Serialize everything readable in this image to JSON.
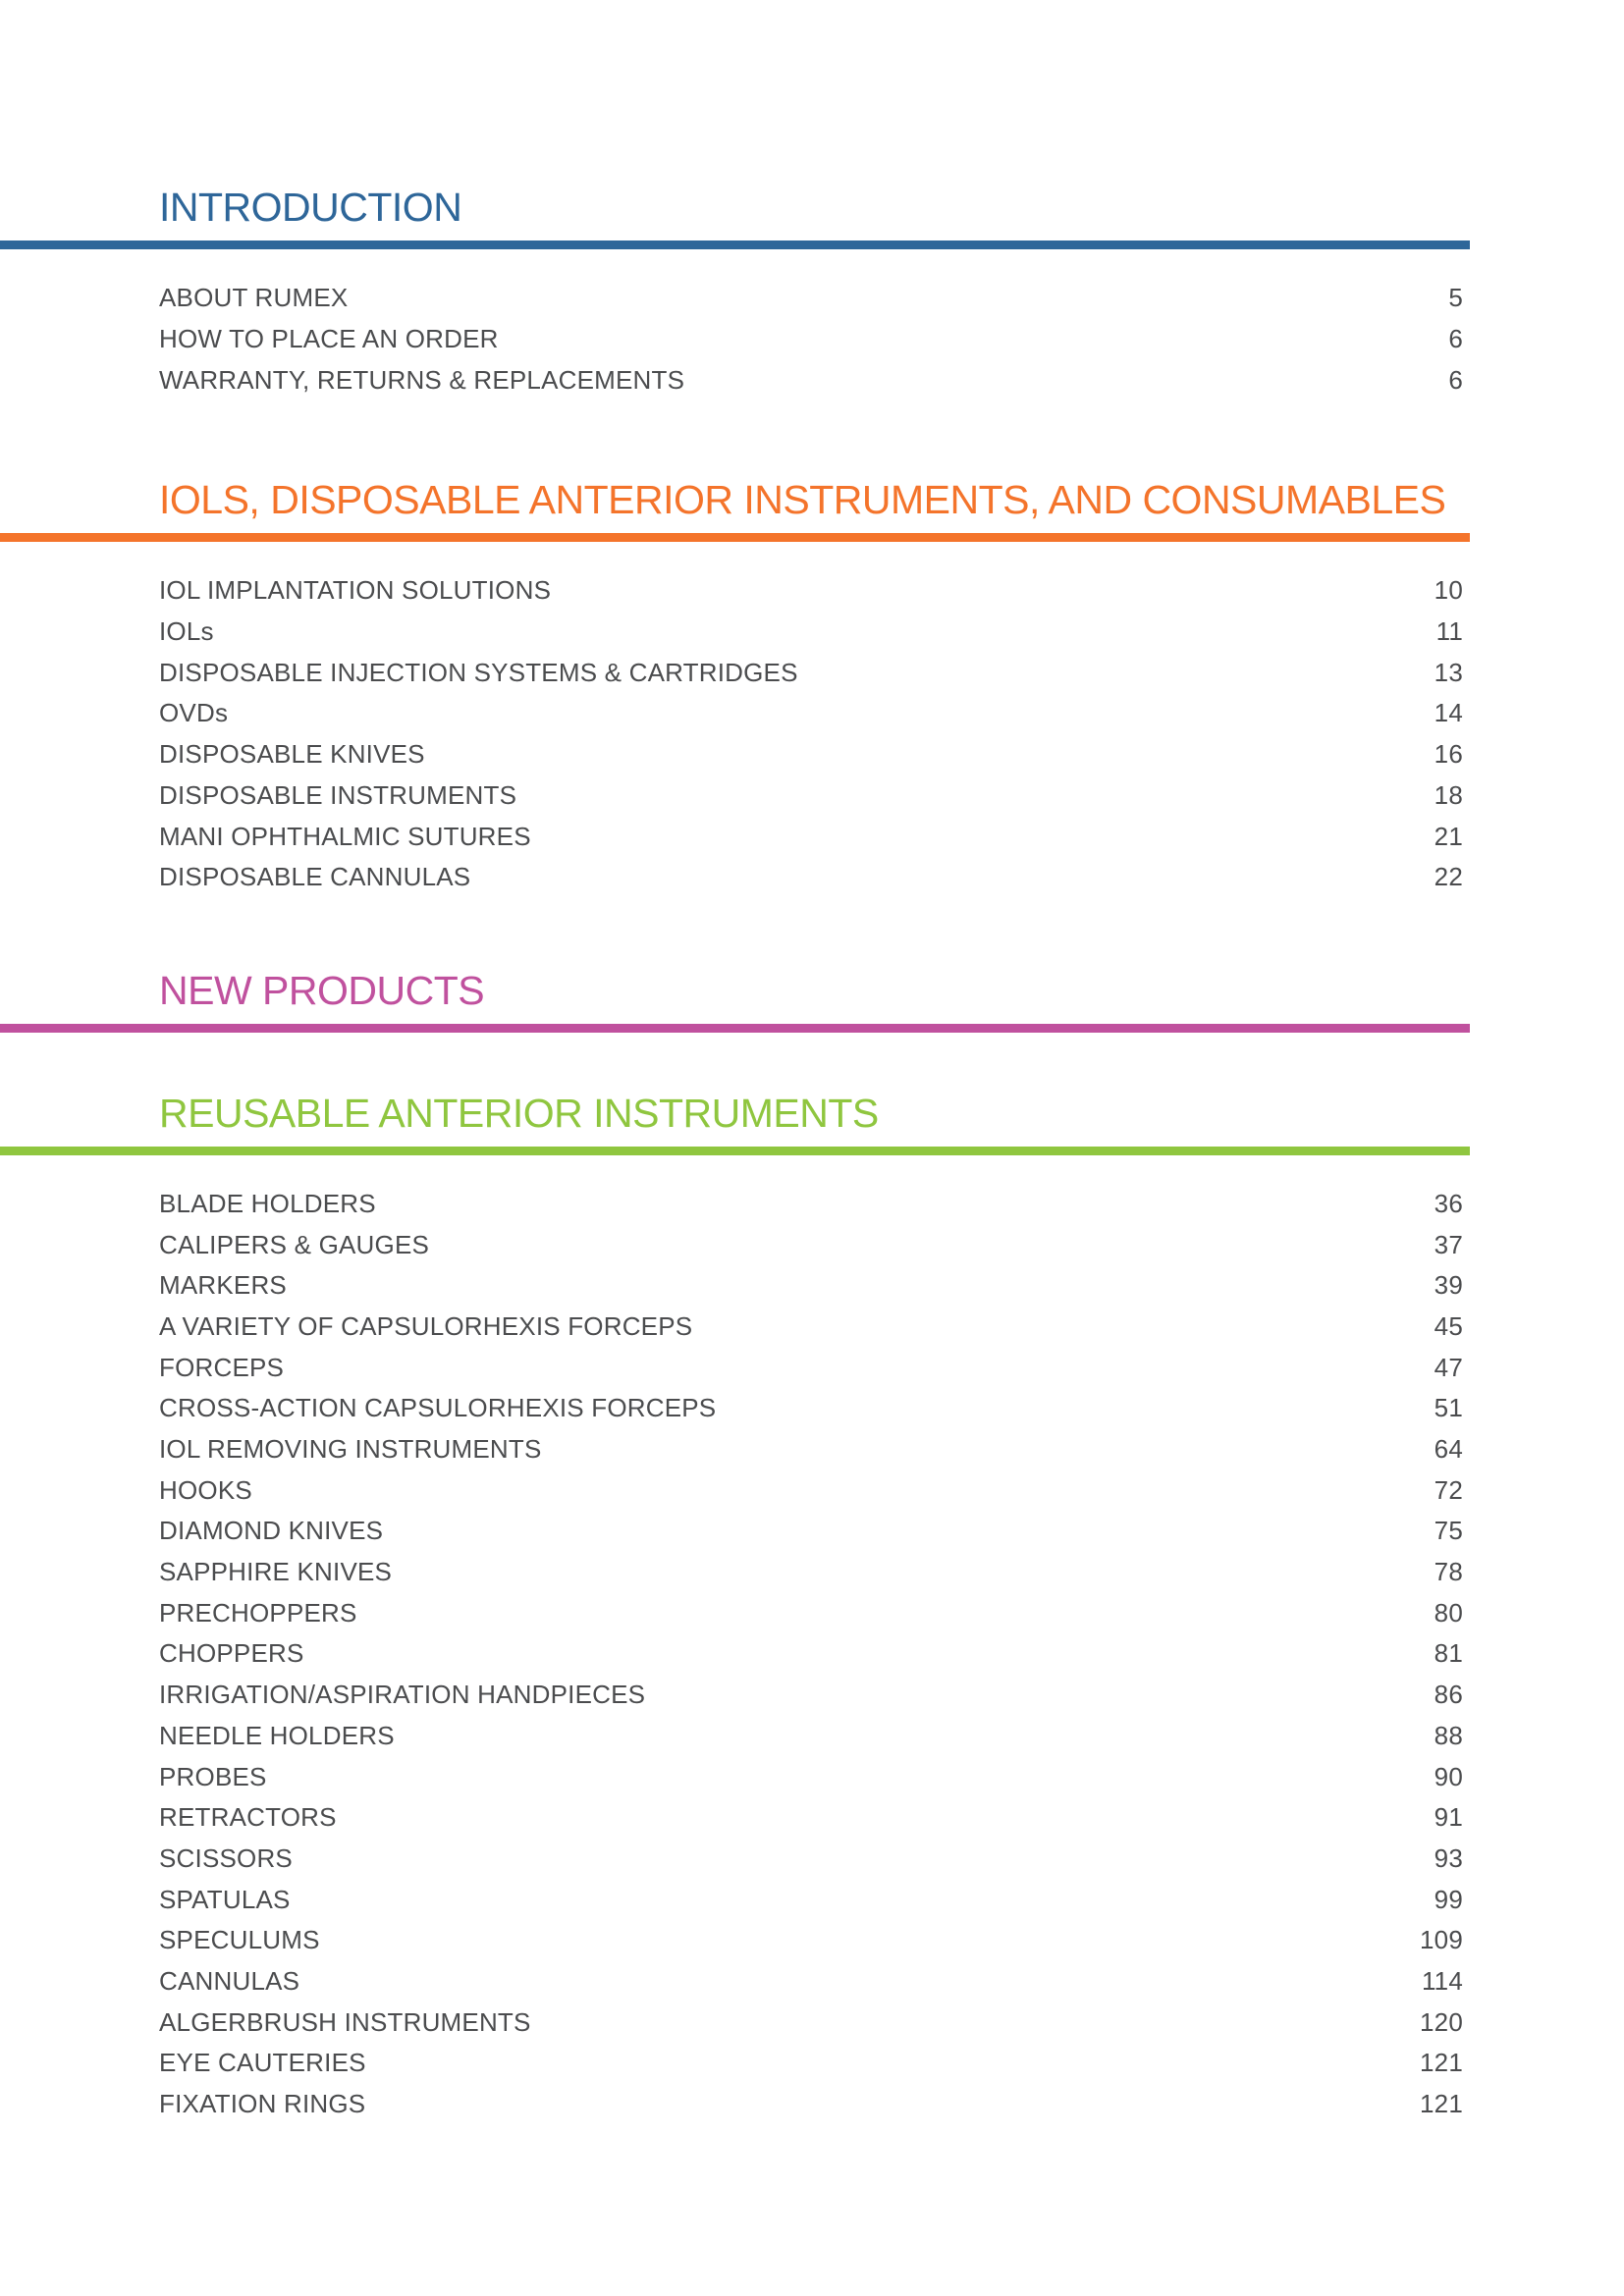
{
  "page": {
    "background_color": "#ffffff",
    "text_color": "#4B4C4E"
  },
  "sections": [
    {
      "title": "INTRODUCTION",
      "accent_color": "#2E6699",
      "entries": [
        {
          "label": "ABOUT RUMEX",
          "page": "5"
        },
        {
          "label": "HOW TO PLACE AN ORDER",
          "page": "6"
        },
        {
          "label": "WARRANTY, RETURNS & REPLACEMENTS",
          "page": "6"
        }
      ]
    },
    {
      "title": "IOLS, DISPOSABLE ANTERIOR INSTRUMENTS, AND CONSUMABLES",
      "accent_color": "#F4742B",
      "entries": [
        {
          "label": "IOL IMPLANTATION SOLUTIONS",
          "page": "10"
        },
        {
          "label": "IOLs",
          "page": "11"
        },
        {
          "label": "DISPOSABLE INJECTION SYSTEMS & CARTRIDGES",
          "page": "13"
        },
        {
          "label": "OVDs",
          "page": "14"
        },
        {
          "label": "DISPOSABLE KNIVES",
          "page": "16"
        },
        {
          "label": "DISPOSABLE INSTRUMENTS",
          "page": "18"
        },
        {
          "label": "MANI OPHTHALMIC SUTURES",
          "page": "21"
        },
        {
          "label": "DISPOSABLE CANNULAS",
          "page": "22"
        }
      ]
    },
    {
      "title": "NEW PRODUCTS",
      "accent_color": "#C0519E",
      "entries": []
    },
    {
      "title": "REUSABLE ANTERIOR INSTRUMENTS",
      "accent_color": "#8FC63F",
      "entries": [
        {
          "label": "BLADE HOLDERS",
          "page": "36"
        },
        {
          "label": "CALIPERS & GAUGES",
          "page": "37"
        },
        {
          "label": "MARKERS",
          "page": "39"
        },
        {
          "label": "A VARIETY OF CAPSULORHEXIS FORCEPS",
          "page": "45"
        },
        {
          "label": "FORCEPS",
          "page": "47"
        },
        {
          "label": "CROSS-ACTION CAPSULORHEXIS FORCEPS",
          "page": "51"
        },
        {
          "label": "IOL REMOVING INSTRUMENTS",
          "page": "64"
        },
        {
          "label": "HOOKS",
          "page": "72"
        },
        {
          "label": "DIAMOND KNIVES",
          "page": "75"
        },
        {
          "label": "SAPPHIRE KNIVES",
          "page": "78"
        },
        {
          "label": "PRECHOPPERS",
          "page": "80"
        },
        {
          "label": "CHOPPERS",
          "page": "81"
        },
        {
          "label": "IRRIGATION/ASPIRATION HANDPIECES",
          "page": "86"
        },
        {
          "label": "NEEDLE HOLDERS",
          "page": "88"
        },
        {
          "label": "PROBES",
          "page": "90"
        },
        {
          "label": "RETRACTORS",
          "page": "91"
        },
        {
          "label": "SCISSORS",
          "page": "93"
        },
        {
          "label": "SPATULAS",
          "page": "99"
        },
        {
          "label": "SPECULUMS",
          "page": "109"
        },
        {
          "label": "CANNULAS",
          "page": "114"
        },
        {
          "label": "ALGERBRUSH INSTRUMENTS",
          "page": "120"
        },
        {
          "label": "EYE CAUTERIES",
          "page": "121"
        },
        {
          "label": "FIXATION RINGS",
          "page": "121"
        }
      ]
    }
  ]
}
